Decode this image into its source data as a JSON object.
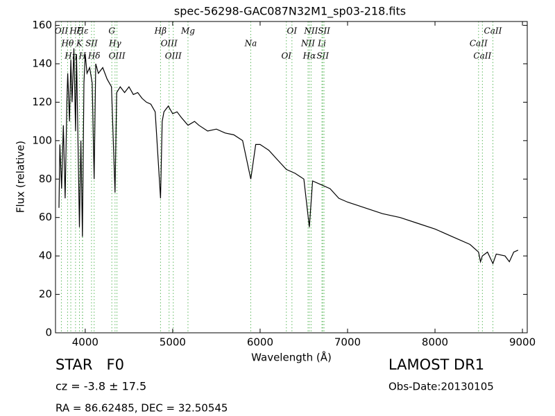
{
  "chart_data": {
    "type": "line",
    "title": "spec-56298-GAC087N32M1_sp03-218.fits",
    "x_label": "Wavelength (Å)",
    "y_label": "Flux (relative)",
    "xlim": [
      3660,
      9055
    ],
    "ylim": [
      0,
      162
    ],
    "xticks": [
      4000,
      5000,
      6000,
      7000,
      8000,
      9000
    ],
    "yticks": [
      0,
      20,
      40,
      60,
      80,
      100,
      120,
      140,
      160
    ],
    "series": [
      {
        "name": "spectrum",
        "color": "#000000",
        "x": [
          3700,
          3710,
          3730,
          3750,
          3770,
          3790,
          3800,
          3820,
          3835,
          3850,
          3870,
          3889,
          3900,
          3934,
          3950,
          3968,
          3985,
          4000,
          4020,
          4050,
          4080,
          4102,
          4120,
          4150,
          4200,
          4250,
          4300,
          4341,
          4360,
          4400,
          4450,
          4500,
          4550,
          4600,
          4650,
          4700,
          4750,
          4800,
          4861,
          4880,
          4900,
          4950,
          5000,
          5050,
          5100,
          5175,
          5250,
          5300,
          5400,
          5500,
          5600,
          5700,
          5800,
          5893,
          5950,
          6000,
          6100,
          6200,
          6300,
          6400,
          6500,
          6563,
          6600,
          6700,
          6800,
          6900,
          7000,
          7200,
          7400,
          7600,
          7800,
          8000,
          8200,
          8400,
          8498,
          8520,
          8542,
          8600,
          8662,
          8700,
          8800,
          8850,
          8900,
          8950
        ],
        "values": [
          65,
          98,
          75,
          108,
          70,
          120,
          135,
          110,
          142,
          120,
          148,
          105,
          145,
          55,
          100,
          50,
          130,
          145,
          135,
          138,
          130,
          80,
          140,
          135,
          138,
          132,
          128,
          73,
          125,
          128,
          125,
          128,
          124,
          125,
          122,
          120,
          119,
          115,
          70,
          110,
          115,
          118,
          114,
          115,
          112,
          108,
          110,
          108,
          105,
          106,
          104,
          103,
          100,
          80,
          98,
          98,
          95,
          90,
          85,
          83,
          80,
          55,
          79,
          77,
          75,
          70,
          68,
          65,
          62,
          60,
          57,
          54,
          50,
          46,
          42,
          37,
          40,
          42,
          36,
          41,
          40,
          37,
          42,
          43
        ]
      }
    ],
    "lines": [
      {
        "label": "OII",
        "wavelength": 3727
      },
      {
        "label": "Hθ",
        "wavelength": 3798
      },
      {
        "label": "Hη",
        "wavelength": 3835
      },
      {
        "label": "Hζ",
        "wavelength": 3889
      },
      {
        "label": "K",
        "wavelength": 3934
      },
      {
        "label": "H",
        "wavelength": 3968
      },
      {
        "label": "Hε",
        "wavelength": 3970
      },
      {
        "label": "SII",
        "wavelength": 4072
      },
      {
        "label": "Hδ",
        "wavelength": 4102
      },
      {
        "label": "G",
        "wavelength": 4304
      },
      {
        "label": "Hγ",
        "wavelength": 4341
      },
      {
        "label": "OIII",
        "wavelength": 4363
      },
      {
        "label": "Hβ",
        "wavelength": 4861
      },
      {
        "label": "OIII",
        "wavelength": 4959
      },
      {
        "label": "OIII",
        "wavelength": 5007
      },
      {
        "label": "Mg",
        "wavelength": 5175
      },
      {
        "label": "Na",
        "wavelength": 5893
      },
      {
        "label": "OI",
        "wavelength": 6300
      },
      {
        "label": "OI",
        "wavelength": 6364
      },
      {
        "label": "NII",
        "wavelength": 6548
      },
      {
        "label": "Hα",
        "wavelength": 6563
      },
      {
        "label": "NII",
        "wavelength": 6583
      },
      {
        "label": "Li",
        "wavelength": 6707
      },
      {
        "label": "SII",
        "wavelength": 6716
      },
      {
        "label": "SII",
        "wavelength": 6731
      },
      {
        "label": "CaII",
        "wavelength": 8498
      },
      {
        "label": "CaII",
        "wavelength": 8542
      },
      {
        "label": "CaII",
        "wavelength": 8662
      }
    ],
    "info": {
      "object": "STAR   F0",
      "redshift": "cz = -3.8 ± 17.5",
      "coords": "RA = 86.62485, DEC = 32.50545",
      "release": "LAMOST DR1",
      "obs_date": "Obs-Date:20130105"
    }
  }
}
